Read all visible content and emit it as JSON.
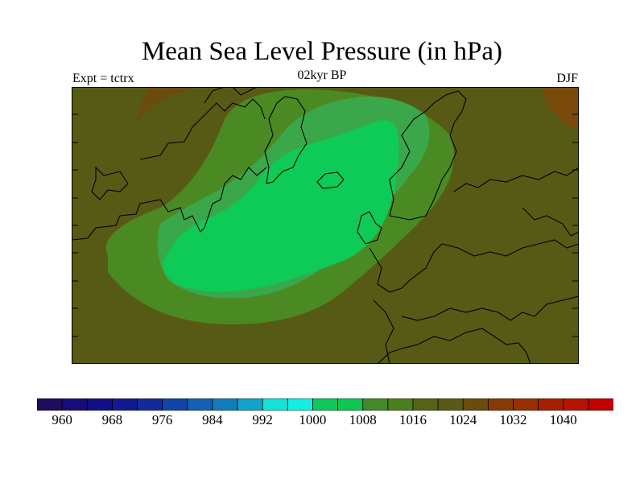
{
  "title": "Mean Sea Level Pressure (in hPa)",
  "subtitle": "02kyr BP",
  "left_label": "Expt = tctrx",
  "right_label": "DJF",
  "colors": {
    "background_field": "#575a14",
    "ring_outer": "#4b8a23",
    "ring_inner": "#3aa84a",
    "core": "#0dcb56",
    "high_pressure": "#7a4a0a",
    "coastline": "#000000"
  },
  "colorbar": {
    "colors": [
      "#1f0b5c",
      "#180c7a",
      "#110e86",
      "#121a92",
      "#132a9c",
      "#1243a8",
      "#1261b4",
      "#127cbe",
      "#12a4cb",
      "#13e2d9",
      "#13f0e3",
      "#10c75c",
      "#0ec653",
      "#44882a",
      "#4b7e1d",
      "#546315",
      "#5a5a14",
      "#6b4c0c",
      "#883a05",
      "#963002",
      "#a51f01",
      "#b81200",
      "#c20000"
    ],
    "tick_labels": [
      "960",
      "968",
      "976",
      "984",
      "992",
      "1000",
      "1008",
      "1016",
      "1024",
      "1032",
      "1040"
    ]
  }
}
